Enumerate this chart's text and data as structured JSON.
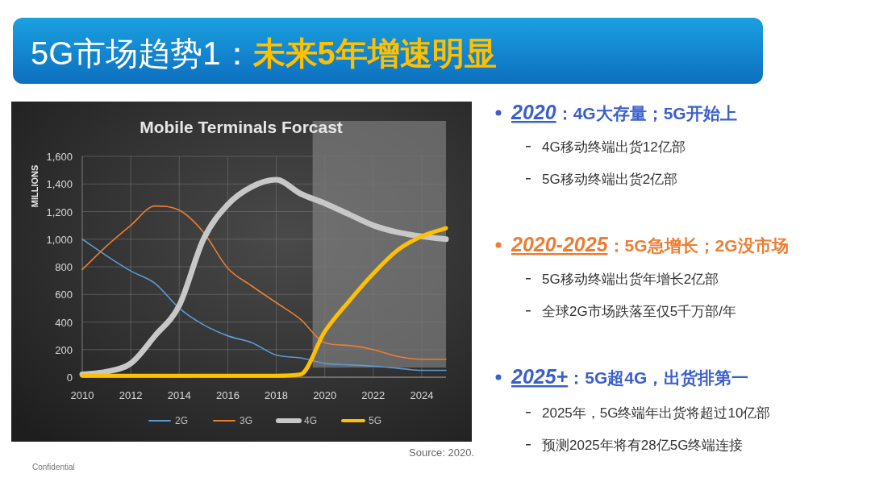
{
  "chart_data": {
    "type": "line",
    "title": "Mobile Terminals Forcast",
    "subtitle": "5G市场趋势1：未来5年增速明显",
    "ylabel": "MILLIONS",
    "x": [
      2010,
      2011,
      2012,
      2013,
      2014,
      2015,
      2016,
      2017,
      2018,
      2019,
      2020,
      2021,
      2022,
      2023,
      2024,
      2025
    ],
    "series": [
      {
        "name": "2G",
        "color": "#5b9bd5",
        "values": [
          1000,
          880,
          770,
          680,
          500,
          380,
          300,
          250,
          160,
          140,
          100,
          90,
          80,
          65,
          50,
          50
        ]
      },
      {
        "name": "3G",
        "color": "#ed7d31",
        "values": [
          780,
          950,
          1100,
          1240,
          1210,
          1050,
          790,
          660,
          540,
          420,
          250,
          230,
          200,
          150,
          130,
          130
        ]
      },
      {
        "name": "4G",
        "color": "#c8c8c8",
        "values": [
          20,
          40,
          100,
          300,
          520,
          1000,
          1250,
          1380,
          1430,
          1330,
          1260,
          1180,
          1100,
          1050,
          1020,
          1000
        ]
      },
      {
        "name": "5G",
        "color": "#ffc000",
        "values": [
          10,
          10,
          10,
          10,
          10,
          10,
          10,
          10,
          10,
          20,
          330,
          550,
          750,
          920,
          1020,
          1080
        ]
      }
    ],
    "xlim": [
      2010,
      2025
    ],
    "xticks": [
      2010,
      2012,
      2014,
      2016,
      2018,
      2020,
      2022,
      2024
    ],
    "ylim": [
      0,
      1600
    ],
    "yticks": [
      0,
      200,
      400,
      600,
      800,
      {
        "value": 1000,
        "label": "1,000"
      },
      {
        "value": 1200,
        "label": "1,200"
      },
      {
        "value": 1400,
        "label": "1,400"
      },
      {
        "value": 1600,
        "label": "1,600"
      }
    ],
    "bands": [
      {
        "axis": "x",
        "from": 2019.5,
        "to": 2025,
        "color": "#8a8a8a"
      }
    ],
    "grid": true,
    "legend": "bottom",
    "marker": "none",
    "annotations": [
      "2020：4G大存量；5G开始上",
      "4G移动终端出货12亿部",
      "5G移动终端出货2亿部",
      "2020-2025：5G急增长；2G没市场",
      "5G移动终端出货年增长2亿部",
      "全球2G市场跌落至仅5千万部/年",
      "2025+：5G超4G，出货排第一",
      "2025年，5G终端年出货将超过10亿部",
      "预测2025年将有28亿5G终端连接",
      "Source: 2020.",
      "Confidential"
    ]
  }
}
